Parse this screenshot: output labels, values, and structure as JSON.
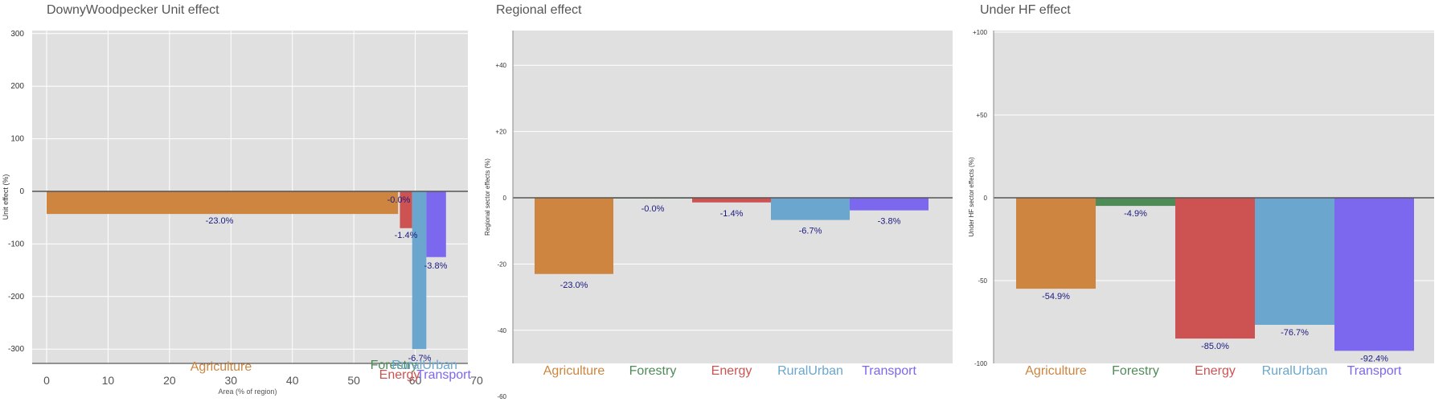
{
  "colors": {
    "panel_bg": "#e0e0e0",
    "grid": "#ffffff",
    "zero_line": "#555555",
    "value_label": "#1a1a80",
    "sectors": {
      "Agriculture": "#cd853f",
      "Forestry": "#4e8b57",
      "Energy": "#cd5353",
      "RuralUrban": "#6aa6ce",
      "Transport": "#7b68ee"
    }
  },
  "chart_data": [
    {
      "type": "bar",
      "title": "DownyWoodpecker Unit effect",
      "xlabel": "Area (% of region)",
      "ylabel": "Unit effect (%)",
      "xlim": [
        -3,
        70
      ],
      "ylim": [
        -325,
        300
      ],
      "x_ticks": [
        "0",
        "10",
        "20",
        "30",
        "40",
        "50",
        "60",
        "70"
      ],
      "y_ticks": [
        "300",
        "200",
        "100",
        "0",
        "-100",
        "-200",
        "-300"
      ],
      "bars": [
        {
          "sector": "Agriculture",
          "x_start": 0,
          "x_end": 57.2,
          "value": -43,
          "label": "-23.0%"
        },
        {
          "sector": "Forestry",
          "x_start": 57.2,
          "x_end": 57.5,
          "value": -1,
          "label": "-0.0%"
        },
        {
          "sector": "Energy",
          "x_start": 57.5,
          "x_end": 59.5,
          "value": -70,
          "label": "-1.4%"
        },
        {
          "sector": "RuralUrban",
          "x_start": 59.5,
          "x_end": 61.8,
          "value": -300,
          "label": "-6.7%"
        },
        {
          "sector": "Transport",
          "x_start": 61.8,
          "x_end": 65,
          "value": -125,
          "label": "-3.8%"
        }
      ],
      "category_labels": [
        "Agriculture",
        "Forestry",
        "Energy",
        "RuralUrban",
        "Transport"
      ]
    },
    {
      "type": "bar",
      "title": "Regional effect",
      "ylabel": "Regional sector effects (%)",
      "ylim": [
        -50,
        50
      ],
      "y_ticks": [
        "+40",
        "+20",
        "0",
        "-20",
        "-40",
        "-60"
      ],
      "categories": [
        "Agriculture",
        "Forestry",
        "Energy",
        "RuralUrban",
        "Transport"
      ],
      "values": [
        -23.0,
        -0.02,
        -1.4,
        -6.7,
        -3.8
      ],
      "labels": [
        "-23.0%",
        "-0.0%",
        "-1.4%",
        "-6.7%",
        "-3.8%"
      ]
    },
    {
      "type": "bar",
      "title": "Under HF effect",
      "ylabel": "Under HF sector effects (%)",
      "ylim": [
        -100,
        100
      ],
      "y_ticks": [
        "+100",
        "+50",
        "0",
        "-50",
        "-100"
      ],
      "categories": [
        "Agriculture",
        "Forestry",
        "Energy",
        "RuralUrban",
        "Transport"
      ],
      "values": [
        -54.9,
        -4.9,
        -85.0,
        -76.7,
        -92.4
      ],
      "labels": [
        "-54.9%",
        "-4.9%",
        "-85.0%",
        "-76.7%",
        "-92.4%"
      ]
    }
  ]
}
